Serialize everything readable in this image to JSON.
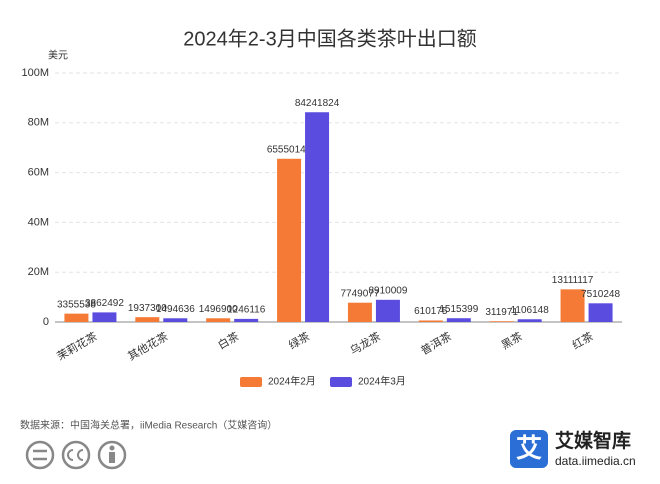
{
  "chart_data": {
    "type": "bar",
    "title": "2024年2-3月中国各类茶叶出口额",
    "y_label": "美元",
    "categories": [
      "茉莉花茶",
      "其他花茶",
      "白茶",
      "绿茶",
      "乌龙茶",
      "普洱茶",
      "黑茶",
      "红茶"
    ],
    "series": [
      {
        "name": "2024年2月",
        "color": "#f47a35",
        "values": [
          3355538,
          1937300,
          1496900,
          65550143,
          7749077,
          610175,
          311971,
          13111117
        ]
      },
      {
        "name": "2024年3月",
        "color": "#5b4ce0",
        "values": [
          3862492,
          1494636,
          1246116,
          84241824,
          8910009,
          1515399,
          1106148,
          7510248
        ]
      }
    ],
    "ylim": [
      0,
      100000000
    ],
    "yticks": [
      0,
      {
        "value": 20000000,
        "label": "20M"
      },
      {
        "value": 40000000,
        "label": "40M"
      },
      {
        "value": 60000000,
        "label": "60M"
      },
      {
        "value": 80000000,
        "label": "80M"
      },
      {
        "value": 100000000,
        "label": "100M"
      }
    ],
    "grid": true,
    "legend": "bottom"
  },
  "source": "数据来源：中国海关总署，iiMedia Research（艾媒咨询）",
  "brand": {
    "logo": "艾",
    "name": "艾媒智库",
    "url": "data.iimedia.cn"
  }
}
